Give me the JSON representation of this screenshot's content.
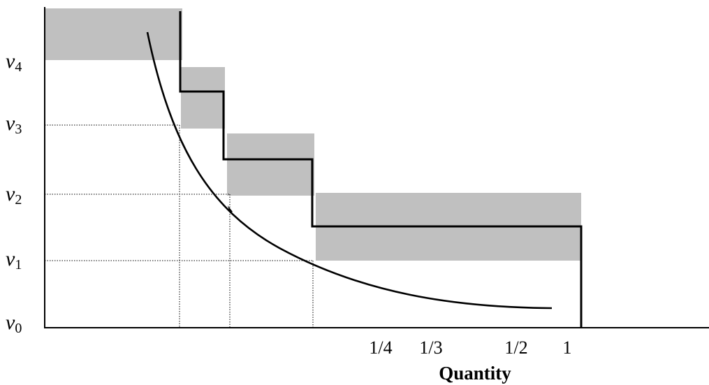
{
  "y_labels": [
    {
      "var": "v",
      "sub": "4"
    },
    {
      "var": "v",
      "sub": "3"
    },
    {
      "var": "v",
      "sub": "2"
    },
    {
      "var": "v",
      "sub": "1"
    },
    {
      "var": "v",
      "sub": "0"
    }
  ],
  "x_labels": [
    "1/4",
    "1/3",
    "1/2",
    "1"
  ],
  "x_axis_title": "Quantity",
  "colors": {
    "band_fill": "#c0c0c0",
    "line": "#000000"
  }
}
